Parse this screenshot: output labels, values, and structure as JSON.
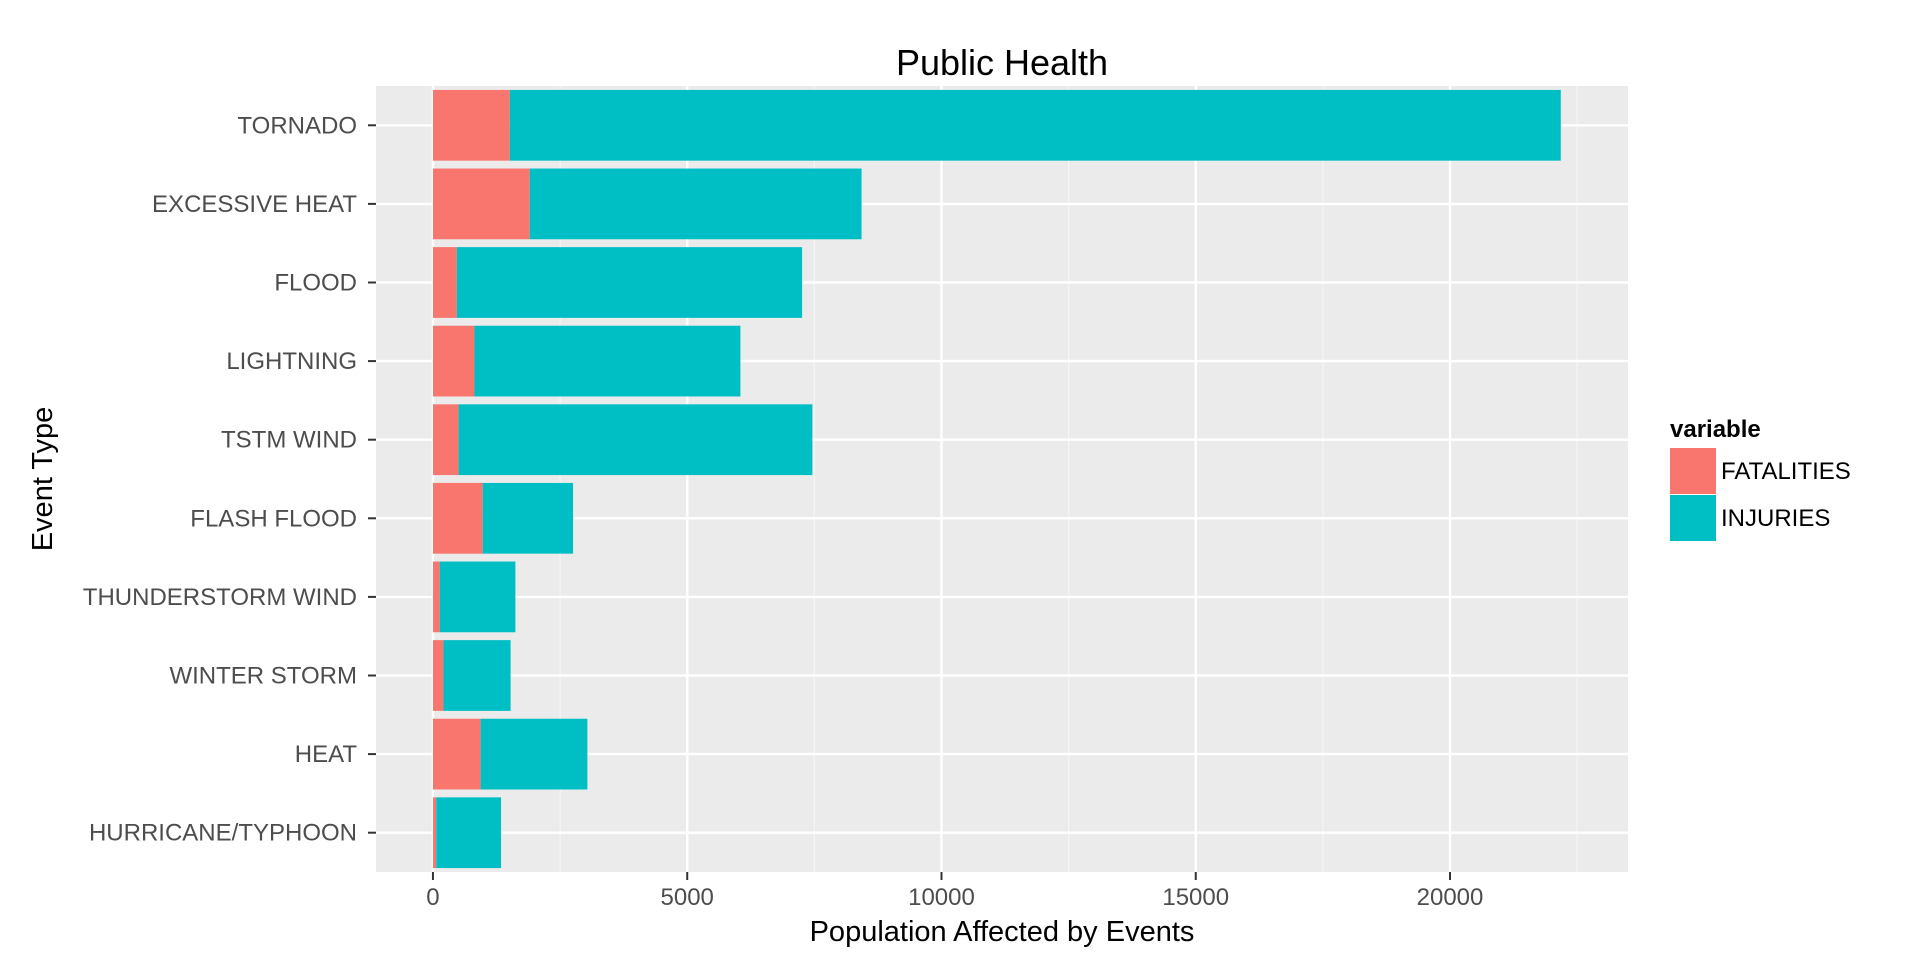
{
  "chart_data": {
    "type": "bar",
    "orientation": "horizontal",
    "stacked": true,
    "title": "Public Health",
    "xlabel": "Population Affected by Events",
    "ylabel": "Event Type",
    "xlim": [
      -1120,
      23500
    ],
    "x_ticks": [
      0,
      5000,
      10000,
      15000,
      20000
    ],
    "x_tick_labels": [
      "0",
      "5000",
      "10000",
      "15000",
      "20000"
    ],
    "categories": [
      "TORNADO",
      "EXCESSIVE HEAT",
      "FLOOD",
      "LIGHTNING",
      "TSTM WIND",
      "FLASH FLOOD",
      "THUNDERSTORM WIND",
      "WINTER STORM",
      "HEAT",
      "HURRICANE/TYPHOON"
    ],
    "series": [
      {
        "name": "FATALITIES",
        "color": "#F8766D",
        "values": [
          1511,
          1903,
          470,
          816,
          504,
          978,
          133,
          206,
          937,
          64
        ]
      },
      {
        "name": "INJURIES",
        "color": "#00BFC4",
        "values": [
          20667,
          6525,
          6789,
          5230,
          6957,
          1777,
          1488,
          1321,
          2100,
          1275
        ]
      }
    ],
    "legend": {
      "title": "variable",
      "position": "right"
    },
    "grid": true,
    "background": "#EBEBEB"
  }
}
